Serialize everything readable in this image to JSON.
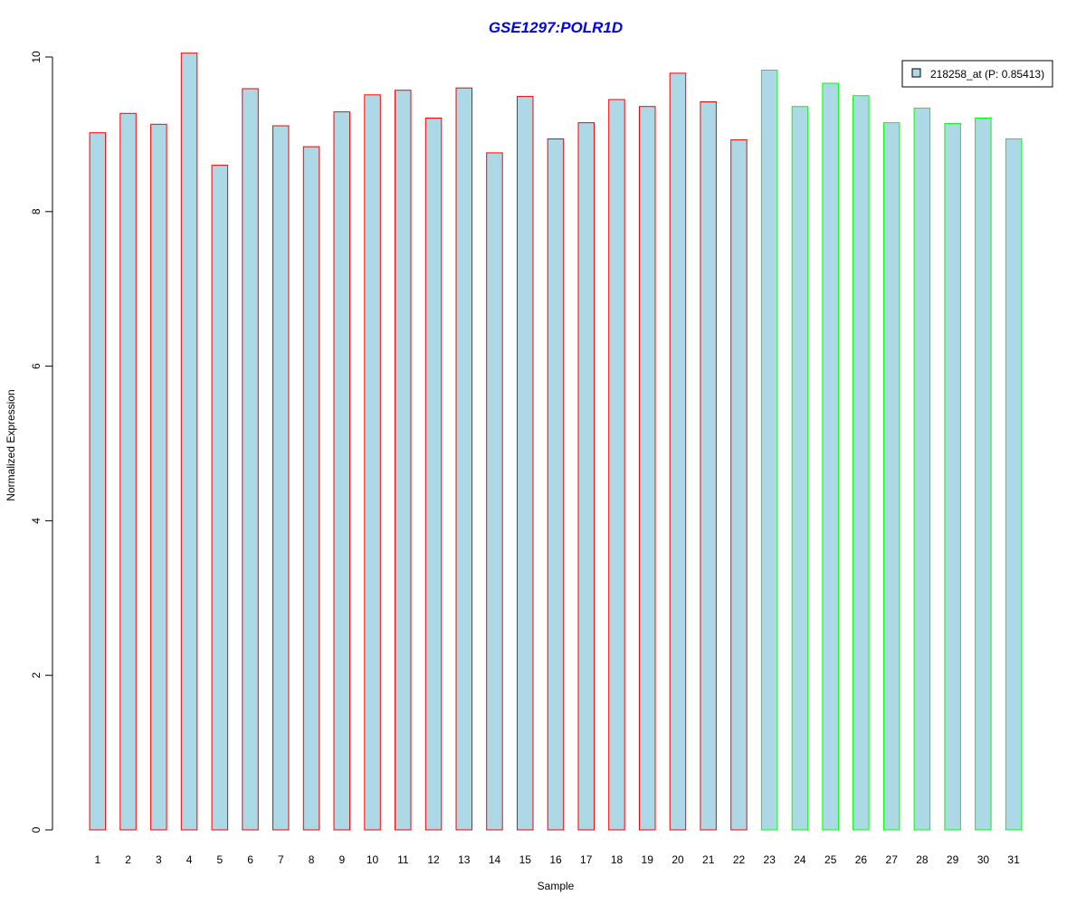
{
  "chart_data": {
    "type": "bar",
    "title": "GSE1297:POLR1D",
    "xlabel": "Sample",
    "ylabel": "Normalized Expression",
    "ylim": [
      0,
      10
    ],
    "yticks": [
      0,
      2,
      4,
      6,
      8,
      10
    ],
    "categories": [
      "1",
      "2",
      "3",
      "4",
      "5",
      "6",
      "7",
      "8",
      "9",
      "10",
      "11",
      "12",
      "13",
      "14",
      "15",
      "16",
      "17",
      "18",
      "19",
      "20",
      "21",
      "22",
      "23",
      "24",
      "25",
      "26",
      "27",
      "28",
      "29",
      "30",
      "31"
    ],
    "values": [
      9.02,
      9.27,
      9.13,
      10.05,
      8.6,
      9.59,
      9.11,
      8.84,
      9.29,
      9.51,
      9.57,
      9.21,
      9.6,
      8.76,
      9.49,
      8.94,
      9.15,
      9.45,
      9.36,
      9.79,
      9.42,
      8.93,
      9.83,
      9.36,
      9.66,
      9.5,
      9.15,
      9.34,
      9.14,
      9.21,
      8.94
    ],
    "groups": [
      1,
      1,
      1,
      1,
      1,
      1,
      1,
      1,
      1,
      1,
      1,
      1,
      1,
      1,
      1,
      1,
      1,
      1,
      1,
      1,
      1,
      1,
      2,
      2,
      2,
      2,
      2,
      2,
      2,
      2,
      2
    ],
    "fill_color": "#add8e6",
    "group_border_colors": {
      "1": "#ff0000",
      "2": "#00ff00"
    },
    "title_color": "#0000ee",
    "legend": {
      "label": "218258_at (P: 0.85413)",
      "placement": "top-right"
    },
    "grid": false
  }
}
